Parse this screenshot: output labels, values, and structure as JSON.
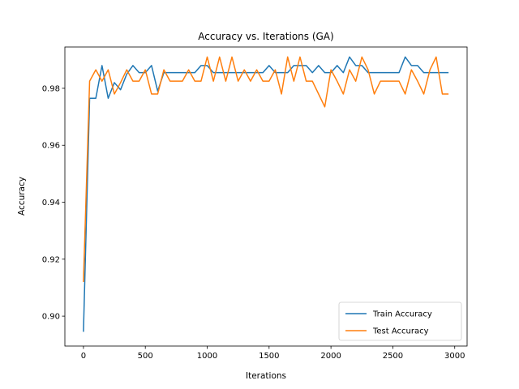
{
  "chart_data": {
    "type": "line",
    "title": "Accuracy vs. Iterations (GA)",
    "xlabel": "Iterations",
    "ylabel": "Accuracy",
    "xlim": [
      -150,
      3100
    ],
    "ylim": [
      0.8895,
      0.9945
    ],
    "x_ticks": [
      0,
      500,
      1000,
      1500,
      2000,
      2500,
      3000
    ],
    "y_ticks": [
      0.9,
      0.92,
      0.94,
      0.96,
      0.98
    ],
    "grid": false,
    "legend": "lower-right",
    "x": [
      0,
      50,
      100,
      150,
      200,
      250,
      300,
      350,
      400,
      450,
      500,
      550,
      600,
      650,
      700,
      750,
      800,
      850,
      900,
      950,
      1000,
      1050,
      1100,
      1150,
      1200,
      1250,
      1300,
      1350,
      1400,
      1450,
      1500,
      1550,
      1600,
      1650,
      1700,
      1750,
      1800,
      1850,
      1900,
      1950,
      2000,
      2050,
      2100,
      2150,
      2200,
      2250,
      2300,
      2350,
      2400,
      2450,
      2500,
      2550,
      2600,
      2650,
      2700,
      2750,
      2800,
      2850,
      2900,
      2950
    ],
    "series": [
      {
        "name": "Train Accuracy",
        "color": "#1f77b4",
        "values": [
          0.8945,
          0.9765,
          0.9765,
          0.988,
          0.9765,
          0.982,
          0.9795,
          0.985,
          0.988,
          0.9855,
          0.9855,
          0.988,
          0.979,
          0.9855,
          0.9855,
          0.9855,
          0.9855,
          0.9855,
          0.9855,
          0.988,
          0.988,
          0.9855,
          0.9855,
          0.9855,
          0.9855,
          0.9855,
          0.9855,
          0.9855,
          0.9855,
          0.9855,
          0.988,
          0.9855,
          0.9855,
          0.9855,
          0.988,
          0.988,
          0.988,
          0.9855,
          0.988,
          0.9855,
          0.9855,
          0.988,
          0.9855,
          0.991,
          0.988,
          0.988,
          0.9855,
          0.9855,
          0.9855,
          0.9855,
          0.9855,
          0.9855,
          0.991,
          0.988,
          0.988,
          0.9855,
          0.9855,
          0.9855,
          0.9855,
          0.9855
        ]
      },
      {
        "name": "Test Accuracy",
        "color": "#ff7f0e",
        "values": [
          0.912,
          0.9825,
          0.9865,
          0.9825,
          0.9865,
          0.978,
          0.982,
          0.9865,
          0.9825,
          0.9825,
          0.9865,
          0.978,
          0.978,
          0.9865,
          0.9825,
          0.9825,
          0.9825,
          0.9865,
          0.9825,
          0.9825,
          0.991,
          0.9825,
          0.991,
          0.9825,
          0.991,
          0.9825,
          0.9865,
          0.9825,
          0.9865,
          0.9825,
          0.9825,
          0.9865,
          0.978,
          0.991,
          0.9825,
          0.991,
          0.9825,
          0.9825,
          0.978,
          0.9735,
          0.9865,
          0.9825,
          0.978,
          0.9865,
          0.9825,
          0.991,
          0.9865,
          0.978,
          0.9825,
          0.9825,
          0.9825,
          0.9825,
          0.978,
          0.9865,
          0.9825,
          0.978,
          0.9865,
          0.991,
          0.978,
          0.978
        ]
      }
    ]
  }
}
